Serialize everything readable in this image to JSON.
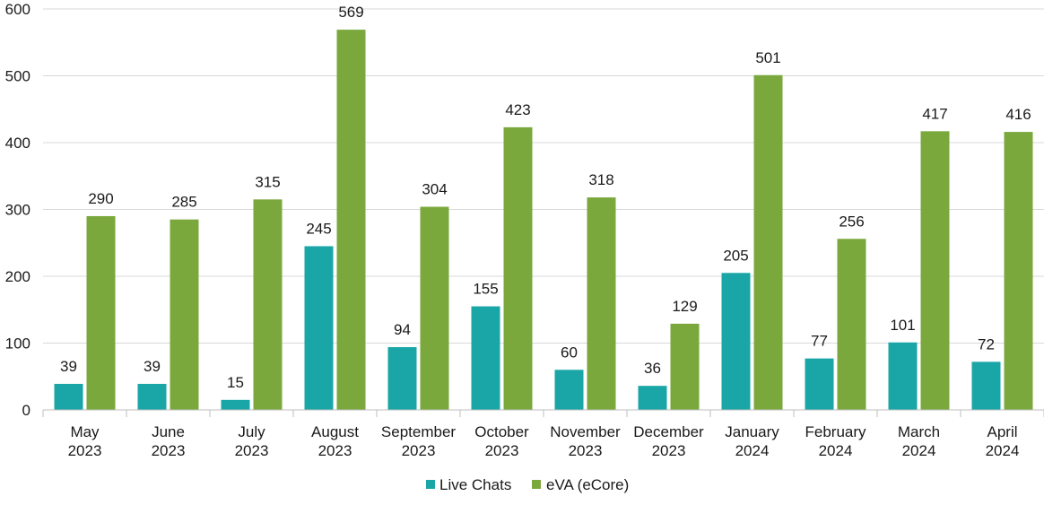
{
  "chart_data": {
    "type": "bar",
    "title": "",
    "xlabel": "",
    "ylabel": "",
    "ylim": [
      0,
      600
    ],
    "yticks": [
      0,
      100,
      200,
      300,
      400,
      500,
      600
    ],
    "grid": true,
    "legend_position": "bottom",
    "categories": [
      [
        "May",
        "2023"
      ],
      [
        "June",
        "2023"
      ],
      [
        "July",
        "2023"
      ],
      [
        "August",
        "2023"
      ],
      [
        "September",
        "2023"
      ],
      [
        "October",
        "2023"
      ],
      [
        "November",
        "2023"
      ],
      [
        "December",
        "2023"
      ],
      [
        "January",
        "2024"
      ],
      [
        "February",
        "2024"
      ],
      [
        "March",
        "2024"
      ],
      [
        "April",
        "2024"
      ]
    ],
    "series": [
      {
        "name": "Live Chats",
        "color": "#1aa6a6",
        "values": [
          39,
          39,
          15,
          245,
          94,
          155,
          60,
          36,
          205,
          77,
          101,
          72
        ]
      },
      {
        "name": "eVA (eCore)",
        "color": "#7ba83c",
        "values": [
          290,
          285,
          315,
          569,
          304,
          423,
          318,
          129,
          501,
          256,
          417,
          416
        ]
      }
    ]
  }
}
